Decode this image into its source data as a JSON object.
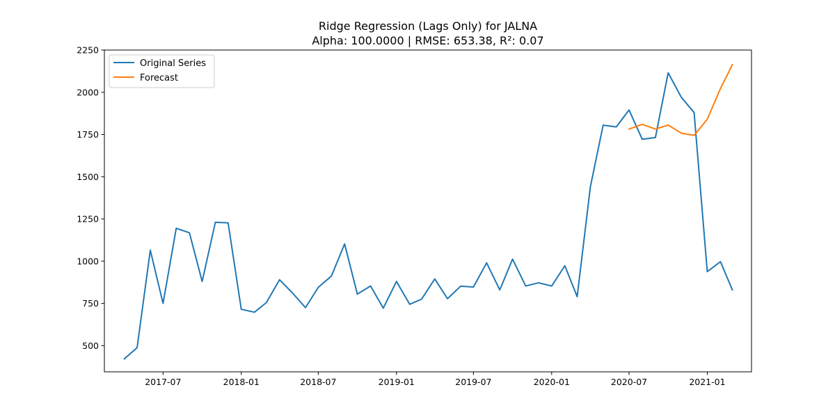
{
  "chart_data": {
    "type": "line",
    "title": "Ridge Regression (Lags Only) for JALNA",
    "subtitle": "Alpha: 100.0000 | RMSE: 653.38, R²: 0.07",
    "xlabel": "",
    "ylabel": "",
    "x_axis": {
      "type": "date",
      "range": [
        "2017-02-13",
        "2021-04-15"
      ],
      "ticks": [
        "2017-07-01",
        "2018-01-01",
        "2018-07-01",
        "2019-01-01",
        "2019-07-01",
        "2020-01-01",
        "2020-07-01",
        "2021-01-01"
      ],
      "tick_labels": [
        "2017-07",
        "2018-01",
        "2018-07",
        "2019-01",
        "2019-07",
        "2020-01",
        "2020-07",
        "2021-01"
      ]
    },
    "y_axis": {
      "range": [
        345,
        2250
      ],
      "ticks": [
        500,
        750,
        1000,
        1250,
        1500,
        1750,
        2000,
        2250
      ],
      "tick_labels": [
        "500",
        "750",
        "1000",
        "1250",
        "1500",
        "1750",
        "2000",
        "2250"
      ]
    },
    "grid": false,
    "legend": {
      "position": "top-left"
    },
    "series": [
      {
        "name": "Original Series",
        "color": "#1f77b4",
        "x": [
          "2017-04-01",
          "2017-05-01",
          "2017-06-01",
          "2017-07-01",
          "2017-08-01",
          "2017-09-01",
          "2017-10-01",
          "2017-11-01",
          "2017-12-01",
          "2018-01-01",
          "2018-02-01",
          "2018-03-01",
          "2018-04-01",
          "2018-05-01",
          "2018-06-01",
          "2018-07-01",
          "2018-08-01",
          "2018-09-01",
          "2018-10-01",
          "2018-11-01",
          "2018-12-01",
          "2019-01-01",
          "2019-02-01",
          "2019-03-01",
          "2019-04-01",
          "2019-05-01",
          "2019-06-01",
          "2019-07-01",
          "2019-08-01",
          "2019-09-01",
          "2019-10-01",
          "2019-11-01",
          "2019-12-01",
          "2020-01-01",
          "2020-02-01",
          "2020-03-01",
          "2020-04-01",
          "2020-05-01",
          "2020-06-01",
          "2020-07-01",
          "2020-08-01",
          "2020-09-01",
          "2020-10-01",
          "2020-11-01",
          "2020-12-01",
          "2021-01-01",
          "2021-02-01",
          "2021-03-01"
        ],
        "values": [
          422,
          488,
          1065,
          750,
          1195,
          1168,
          880,
          1230,
          1227,
          715,
          698,
          755,
          890,
          813,
          725,
          845,
          912,
          1102,
          805,
          853,
          722,
          880,
          745,
          775,
          895,
          778,
          852,
          847,
          990,
          830,
          1012,
          853,
          872,
          853,
          973,
          790,
          1440,
          1805,
          1795,
          1895,
          1722,
          1732,
          2115,
          1970,
          1880,
          938,
          997,
          830
        ]
      },
      {
        "name": "Forecast",
        "color": "#ff7f0e",
        "x": [
          "2020-07-01",
          "2020-08-01",
          "2020-09-01",
          "2020-10-01",
          "2020-11-01",
          "2020-12-01",
          "2021-01-01",
          "2021-02-01",
          "2021-03-01"
        ],
        "values": [
          1782,
          1810,
          1782,
          1806,
          1758,
          1745,
          1840,
          2022,
          2163
        ]
      }
    ]
  }
}
